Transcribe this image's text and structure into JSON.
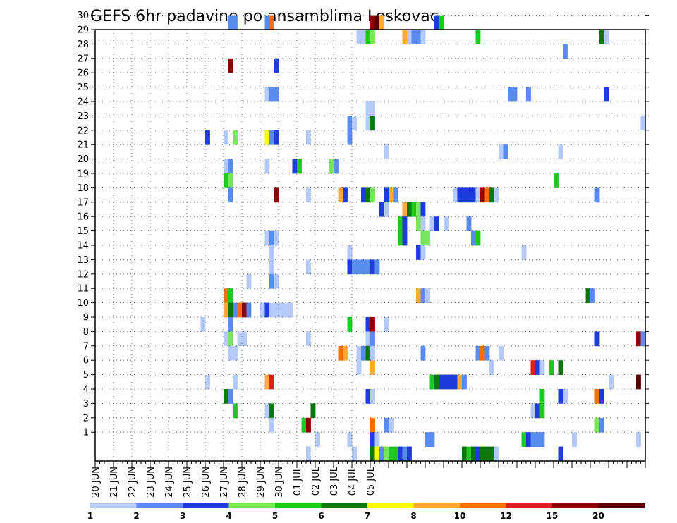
{
  "chart_data": {
    "type": "heatmap",
    "title": "GEFS 6hr padavine po ansamblima Leskovac",
    "xlabel": "",
    "ylabel": "",
    "y_ticks": [
      1,
      2,
      3,
      4,
      5,
      6,
      7,
      8,
      9,
      10,
      11,
      12,
      13,
      14,
      15,
      16,
      17,
      18,
      19,
      20,
      21,
      22,
      23,
      24,
      25,
      26,
      27,
      28,
      29,
      30
    ],
    "x_ticks": [
      "20 JUN",
      "21 JUN",
      "22 JUN",
      "23 JUN",
      "24 JUN",
      "25 JUN",
      "26 JUN",
      "27 JUN",
      "28 JUN",
      "29 JUN",
      "30 JUN",
      "01 JUL",
      "02 JUL",
      "03 JUL",
      "04 JUL",
      "05 JUL"
    ],
    "grid": true,
    "x_unit": "6-hour step after 20 JUN 00Z",
    "palette": [
      "#b4c8fa",
      "#5a8cf0",
      "#1e3cdc",
      "#78e65a",
      "#1ec81e",
      "#0a780a",
      "#ffff00",
      "#ffaa32",
      "#ff6e00",
      "#dc1e1e",
      "#8c0000",
      "#5a0000"
    ],
    "legend": {
      "labels": [
        "1",
        "2",
        "3",
        "4",
        "5",
        "6",
        "7",
        "8",
        "10",
        "12",
        "15",
        "20"
      ]
    },
    "cells": [
      [
        30,
        29,
        1
      ],
      [
        30,
        30,
        1
      ],
      [
        30,
        37,
        1
      ],
      [
        30,
        38,
        8
      ],
      [
        30,
        60,
        10
      ],
      [
        30,
        61,
        11
      ],
      [
        30,
        62,
        7
      ],
      [
        30,
        74,
        2
      ],
      [
        30,
        75,
        4
      ],
      [
        29,
        57,
        0
      ],
      [
        29,
        58,
        0
      ],
      [
        29,
        59,
        4
      ],
      [
        29,
        60,
        3
      ],
      [
        29,
        67,
        7
      ],
      [
        29,
        68,
        0
      ],
      [
        29,
        69,
        1
      ],
      [
        29,
        70,
        1
      ],
      [
        29,
        71,
        0
      ],
      [
        29,
        83,
        4
      ],
      [
        29,
        110,
        5
      ],
      [
        29,
        111,
        0
      ],
      [
        28,
        102,
        1
      ],
      [
        27,
        29,
        10
      ],
      [
        27,
        39,
        2
      ],
      [
        25,
        37,
        0
      ],
      [
        25,
        38,
        1
      ],
      [
        25,
        39,
        1
      ],
      [
        25,
        90,
        1
      ],
      [
        25,
        91,
        1
      ],
      [
        25,
        94,
        1
      ],
      [
        25,
        111,
        2
      ],
      [
        24,
        59,
        0
      ],
      [
        24,
        60,
        0
      ],
      [
        23,
        55,
        1
      ],
      [
        23,
        56,
        0
      ],
      [
        23,
        59,
        0
      ],
      [
        23,
        60,
        5
      ],
      [
        23,
        119,
        0
      ],
      [
        22,
        24,
        2
      ],
      [
        22,
        28,
        0
      ],
      [
        22,
        30,
        3
      ],
      [
        22,
        37,
        6
      ],
      [
        22,
        38,
        1
      ],
      [
        22,
        39,
        2
      ],
      [
        22,
        46,
        0
      ],
      [
        22,
        55,
        1
      ],
      [
        21,
        63,
        0
      ],
      [
        21,
        88,
        0
      ],
      [
        21,
        89,
        1
      ],
      [
        21,
        101,
        0
      ],
      [
        20,
        28,
        0
      ],
      [
        20,
        29,
        1
      ],
      [
        20,
        37,
        0
      ],
      [
        20,
        43,
        2
      ],
      [
        20,
        44,
        4
      ],
      [
        20,
        51,
        3
      ],
      [
        20,
        52,
        1
      ],
      [
        19,
        28,
        4
      ],
      [
        19,
        29,
        3
      ],
      [
        19,
        100,
        4
      ],
      [
        18,
        29,
        1
      ],
      [
        18,
        39,
        10
      ],
      [
        18,
        46,
        0
      ],
      [
        18,
        53,
        7
      ],
      [
        18,
        54,
        2
      ],
      [
        18,
        58,
        2
      ],
      [
        18,
        59,
        5
      ],
      [
        18,
        60,
        3
      ],
      [
        18,
        63,
        2
      ],
      [
        18,
        64,
        7
      ],
      [
        18,
        65,
        1
      ],
      [
        18,
        78,
        0
      ],
      [
        18,
        79,
        2
      ],
      [
        18,
        80,
        2
      ],
      [
        18,
        81,
        2
      ],
      [
        18,
        82,
        2
      ],
      [
        18,
        83,
        0
      ],
      [
        18,
        84,
        10
      ],
      [
        18,
        85,
        8
      ],
      [
        18,
        86,
        5
      ],
      [
        18,
        87,
        0
      ],
      [
        18,
        109,
        1
      ],
      [
        17,
        62,
        2
      ],
      [
        17,
        63,
        0
      ],
      [
        17,
        67,
        7
      ],
      [
        17,
        68,
        5
      ],
      [
        17,
        69,
        4
      ],
      [
        17,
        70,
        3
      ],
      [
        17,
        71,
        2
      ],
      [
        16,
        66,
        4
      ],
      [
        16,
        67,
        2
      ],
      [
        16,
        70,
        3
      ],
      [
        16,
        71,
        0
      ],
      [
        16,
        73,
        0
      ],
      [
        16,
        74,
        2
      ],
      [
        16,
        76,
        0
      ],
      [
        16,
        81,
        1
      ],
      [
        15,
        37,
        0
      ],
      [
        15,
        38,
        1
      ],
      [
        15,
        39,
        0
      ],
      [
        15,
        66,
        4
      ],
      [
        15,
        67,
        2
      ],
      [
        15,
        71,
        3
      ],
      [
        15,
        72,
        3
      ],
      [
        15,
        82,
        1
      ],
      [
        15,
        83,
        4
      ],
      [
        14,
        38,
        0
      ],
      [
        14,
        55,
        0
      ],
      [
        14,
        70,
        2
      ],
      [
        14,
        71,
        0
      ],
      [
        14,
        93,
        0
      ],
      [
        13,
        38,
        0
      ],
      [
        13,
        46,
        0
      ],
      [
        13,
        55,
        2
      ],
      [
        13,
        56,
        1
      ],
      [
        13,
        57,
        1
      ],
      [
        13,
        58,
        1
      ],
      [
        13,
        59,
        1
      ],
      [
        13,
        60,
        2
      ],
      [
        13,
        61,
        1
      ],
      [
        12,
        33,
        0
      ],
      [
        12,
        38,
        1
      ],
      [
        12,
        39,
        0
      ],
      [
        11,
        28,
        8
      ],
      [
        11,
        29,
        4
      ],
      [
        11,
        70,
        7
      ],
      [
        11,
        71,
        1
      ],
      [
        11,
        72,
        0
      ],
      [
        11,
        107,
        5
      ],
      [
        11,
        108,
        1
      ],
      [
        10,
        28,
        7
      ],
      [
        10,
        29,
        5
      ],
      [
        10,
        30,
        1
      ],
      [
        10,
        31,
        8
      ],
      [
        10,
        32,
        10
      ],
      [
        10,
        33,
        1
      ],
      [
        10,
        36,
        0
      ],
      [
        10,
        37,
        2
      ],
      [
        10,
        38,
        0
      ],
      [
        10,
        39,
        0
      ],
      [
        10,
        40,
        0
      ],
      [
        10,
        41,
        0
      ],
      [
        10,
        42,
        0
      ],
      [
        9,
        23,
        0
      ],
      [
        9,
        29,
        1
      ],
      [
        9,
        55,
        4
      ],
      [
        9,
        59,
        2
      ],
      [
        9,
        60,
        10
      ],
      [
        9,
        63,
        0
      ],
      [
        8,
        28,
        0
      ],
      [
        8,
        29,
        3
      ],
      [
        8,
        31,
        0
      ],
      [
        8,
        32,
        0
      ],
      [
        8,
        46,
        0
      ],
      [
        8,
        59,
        0
      ],
      [
        8,
        60,
        1
      ],
      [
        8,
        109,
        2
      ],
      [
        8,
        118,
        10
      ],
      [
        8,
        119,
        1
      ],
      [
        7,
        29,
        0
      ],
      [
        7,
        30,
        0
      ],
      [
        7,
        53,
        8
      ],
      [
        7,
        54,
        7
      ],
      [
        7,
        57,
        0
      ],
      [
        7,
        58,
        1
      ],
      [
        7,
        59,
        5
      ],
      [
        7,
        60,
        0
      ],
      [
        7,
        71,
        1
      ],
      [
        7,
        83,
        1
      ],
      [
        7,
        84,
        8
      ],
      [
        7,
        85,
        1
      ],
      [
        7,
        88,
        0
      ],
      [
        6,
        57,
        0
      ],
      [
        6,
        60,
        7
      ],
      [
        6,
        86,
        0
      ],
      [
        6,
        95,
        9
      ],
      [
        6,
        96,
        2
      ],
      [
        6,
        97,
        0
      ],
      [
        6,
        99,
        4
      ],
      [
        6,
        101,
        5
      ],
      [
        5,
        24,
        0
      ],
      [
        5,
        30,
        0
      ],
      [
        5,
        37,
        7
      ],
      [
        5,
        38,
        9
      ],
      [
        5,
        73,
        4
      ],
      [
        5,
        74,
        5
      ],
      [
        5,
        75,
        2
      ],
      [
        5,
        76,
        2
      ],
      [
        5,
        77,
        2
      ],
      [
        5,
        78,
        2
      ],
      [
        5,
        79,
        7
      ],
      [
        5,
        80,
        1
      ],
      [
        5,
        112,
        0
      ],
      [
        5,
        118,
        11
      ],
      [
        4,
        28,
        5
      ],
      [
        4,
        29,
        1
      ],
      [
        4,
        59,
        2
      ],
      [
        4,
        60,
        0
      ],
      [
        4,
        97,
        4
      ],
      [
        4,
        101,
        2
      ],
      [
        4,
        102,
        0
      ],
      [
        4,
        109,
        8
      ],
      [
        4,
        110,
        2
      ],
      [
        3,
        30,
        4
      ],
      [
        3,
        37,
        0
      ],
      [
        3,
        38,
        5
      ],
      [
        3,
        47,
        5
      ],
      [
        3,
        95,
        0
      ],
      [
        3,
        96,
        2
      ],
      [
        3,
        97,
        4
      ],
      [
        2,
        38,
        0
      ],
      [
        2,
        45,
        4
      ],
      [
        2,
        46,
        10
      ],
      [
        2,
        60,
        8
      ],
      [
        2,
        63,
        1
      ],
      [
        2,
        64,
        0
      ],
      [
        2,
        109,
        3
      ],
      [
        2,
        110,
        1
      ],
      [
        1,
        48,
        0
      ],
      [
        1,
        55,
        0
      ],
      [
        1,
        60,
        2
      ],
      [
        1,
        61,
        0
      ],
      [
        1,
        72,
        1
      ],
      [
        1,
        73,
        1
      ],
      [
        1,
        93,
        4
      ],
      [
        1,
        94,
        2
      ],
      [
        1,
        95,
        1
      ],
      [
        1,
        96,
        1
      ],
      [
        1,
        97,
        1
      ],
      [
        1,
        104,
        0
      ],
      [
        1,
        118,
        0
      ],
      [
        0,
        46,
        0
      ],
      [
        0,
        56,
        0
      ],
      [
        0,
        60,
        5
      ],
      [
        0,
        61,
        6
      ],
      [
        0,
        62,
        1
      ],
      [
        0,
        63,
        3
      ],
      [
        0,
        64,
        4
      ],
      [
        0,
        65,
        4
      ],
      [
        0,
        66,
        2
      ],
      [
        0,
        67,
        1
      ],
      [
        0,
        68,
        2
      ],
      [
        0,
        80,
        5
      ],
      [
        0,
        81,
        4
      ],
      [
        0,
        82,
        5
      ],
      [
        0,
        83,
        2
      ],
      [
        0,
        84,
        5
      ],
      [
        0,
        85,
        5
      ],
      [
        0,
        86,
        5
      ],
      [
        0,
        87,
        0
      ],
      [
        0,
        101,
        2
      ]
    ]
  }
}
